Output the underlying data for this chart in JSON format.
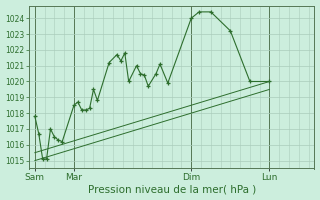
{
  "bg_color": "#cceedd",
  "grid_color": "#aaccbb",
  "line_color": "#2d6e2d",
  "spine_color": "#557755",
  "ylim": [
    1014.5,
    1024.8
  ],
  "yticks": [
    1015,
    1016,
    1017,
    1018,
    1019,
    1020,
    1021,
    1022,
    1023,
    1024
  ],
  "xlabel": "Pression niveau de la mer( hPa )",
  "day_labels": [
    "Sam",
    "Mar",
    "Dim",
    "Lun"
  ],
  "day_positions": [
    0,
    20,
    80,
    120
  ],
  "xlim": [
    -3,
    143
  ],
  "main_line": [
    [
      0,
      1017.8
    ],
    [
      2,
      1016.7
    ],
    [
      4,
      1015.1
    ],
    [
      6,
      1015.1
    ],
    [
      8,
      1017.0
    ],
    [
      10,
      1016.5
    ],
    [
      12,
      1016.3
    ],
    [
      14,
      1016.2
    ],
    [
      20,
      1018.5
    ],
    [
      22,
      1018.7
    ],
    [
      24,
      1018.2
    ],
    [
      26,
      1018.2
    ],
    [
      28,
      1018.3
    ],
    [
      30,
      1019.5
    ],
    [
      32,
      1018.8
    ],
    [
      38,
      1021.2
    ],
    [
      42,
      1021.7
    ],
    [
      44,
      1021.3
    ],
    [
      46,
      1021.8
    ],
    [
      48,
      1020.0
    ],
    [
      52,
      1021.0
    ],
    [
      54,
      1020.5
    ],
    [
      56,
      1020.4
    ],
    [
      58,
      1019.7
    ],
    [
      62,
      1020.5
    ],
    [
      64,
      1021.1
    ],
    [
      68,
      1019.9
    ],
    [
      80,
      1024.0
    ],
    [
      84,
      1024.4
    ],
    [
      90,
      1024.4
    ],
    [
      100,
      1023.2
    ],
    [
      110,
      1020.0
    ],
    [
      120,
      1020.0
    ]
  ],
  "trend_line1": [
    [
      0,
      1015.5
    ],
    [
      120,
      1020.0
    ]
  ],
  "trend_line2": [
    [
      0,
      1015.0
    ],
    [
      120,
      1019.5
    ]
  ],
  "ytick_fontsize": 5.5,
  "xtick_fontsize": 6.5,
  "xlabel_fontsize": 7.5
}
